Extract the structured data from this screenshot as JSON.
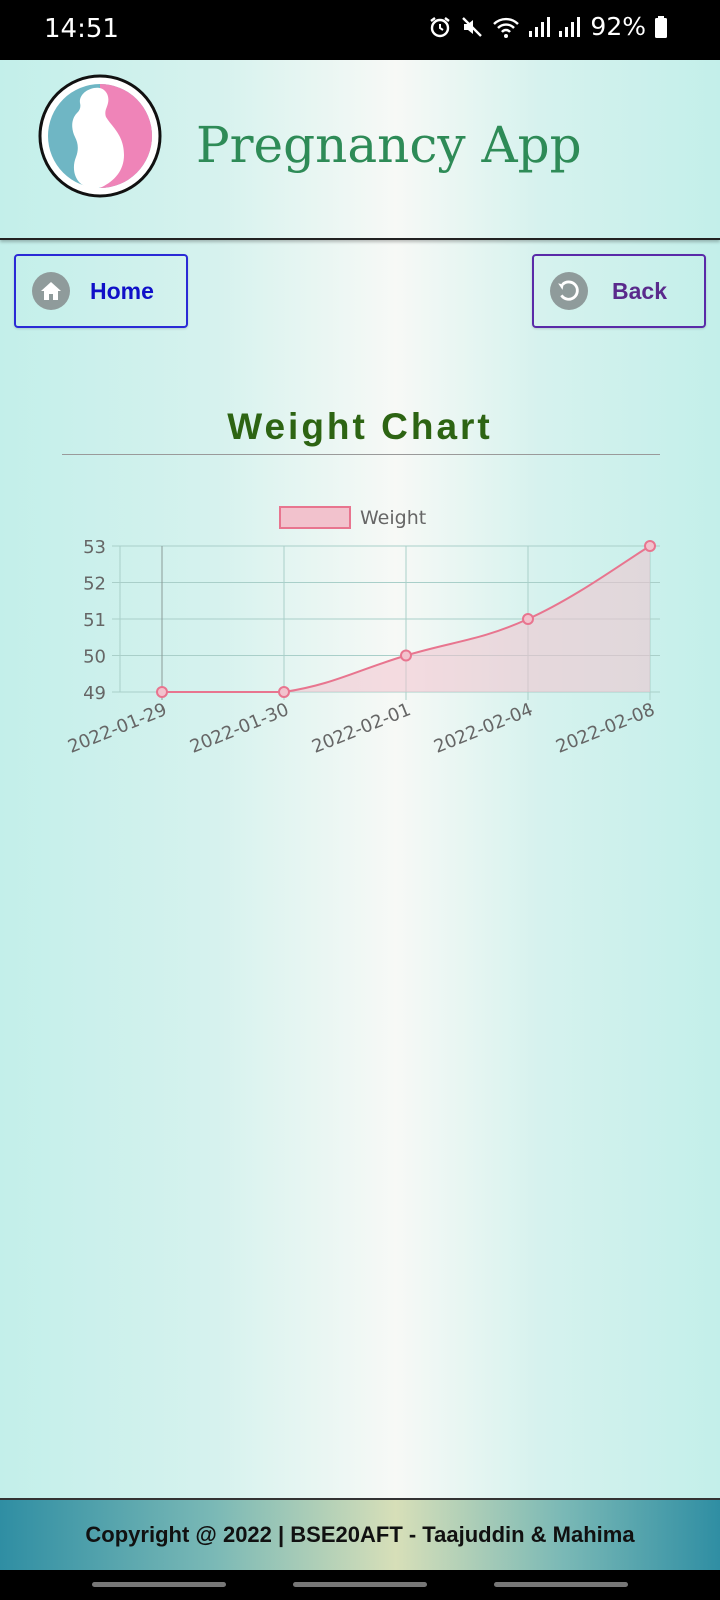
{
  "status_bar": {
    "time": "14:51",
    "battery": "92%",
    "icons": [
      "alarm-icon",
      "mute-icon",
      "wifi-icon",
      "signal-icon",
      "signal-icon",
      "battery-icon"
    ]
  },
  "header": {
    "app_title": "Pregnancy App",
    "logo_icon": "pregnant-woman-logo"
  },
  "nav": {
    "home_label": "Home",
    "back_label": "Back",
    "home_icon": "home-icon",
    "back_icon": "back-arrow-icon"
  },
  "page": {
    "title": "Weight Chart"
  },
  "chart_data": {
    "type": "area",
    "categories": [
      "2022-01-29",
      "2022-01-30",
      "2022-02-01",
      "2022-02-04",
      "2022-02-08"
    ],
    "series": [
      {
        "name": "Weight",
        "values": [
          49,
          49,
          50,
          51,
          53
        ]
      }
    ],
    "yticks": [
      "53",
      "52",
      "51",
      "50",
      "49"
    ],
    "ylim": [
      49,
      53
    ],
    "legend": "top",
    "grid": true,
    "colors": {
      "line": "#e8758f",
      "fill": "#f2c2cd"
    }
  },
  "footer": {
    "copyright": "Copyright @ 2022 | BSE20AFT - Taajuddin & Mahima"
  },
  "colors": {
    "title_green": "#2e8b57",
    "chart_title_green": "#2d6413",
    "home_blue": "#1010c8",
    "back_purple": "#5a2a8c"
  }
}
